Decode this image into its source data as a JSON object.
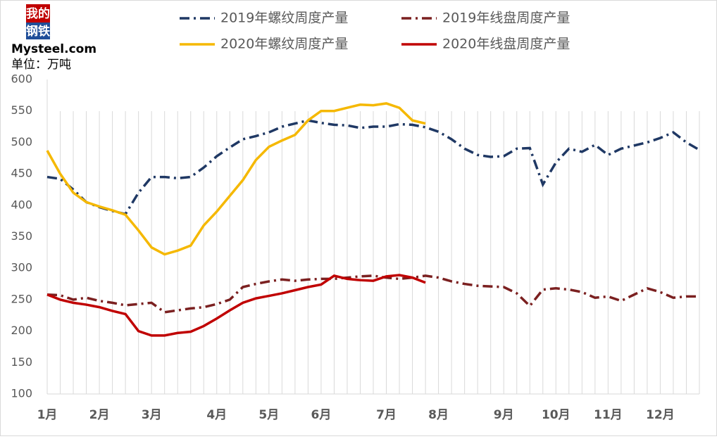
{
  "chart_data": {
    "type": "line",
    "logo": [
      "我的",
      "钢铁",
      "Mysteel.com"
    ],
    "unit": "单位：万吨",
    "categories": [
      "1月",
      null,
      null,
      null,
      "2月",
      null,
      null,
      null,
      "3月",
      null,
      null,
      null,
      null,
      "4月",
      null,
      null,
      null,
      "5月",
      null,
      null,
      null,
      "6月",
      null,
      null,
      null,
      null,
      "7月",
      null,
      null,
      null,
      "8月",
      null,
      null,
      null,
      null,
      "9月",
      null,
      null,
      null,
      "10月",
      null,
      null,
      null,
      "11月",
      null,
      null,
      null,
      "12月",
      null,
      null,
      null
    ],
    "ylim": [
      100,
      600
    ],
    "yticks": [
      100,
      150,
      200,
      250,
      300,
      350,
      400,
      450,
      500,
      550,
      600
    ],
    "grid": true,
    "series": [
      {
        "name": "2019年螺纹周度产量",
        "color": "#1f3864",
        "dash": "dashdot",
        "values": [
          445,
          442,
          425,
          405,
          397,
          391,
          386,
          420,
          445,
          445,
          443,
          445,
          460,
          478,
          492,
          505,
          510,
          516,
          525,
          530,
          535,
          531,
          528,
          527,
          523,
          525,
          525,
          529,
          528,
          524,
          517,
          505,
          490,
          480,
          477,
          478,
          490,
          491,
          433,
          468,
          490,
          485,
          496,
          480,
          490,
          495,
          500,
          507,
          516,
          500,
          488
        ]
      },
      {
        "name": "2019年线盘周度产量",
        "color": "#7b2020",
        "dash": "dashdot",
        "values": [
          258,
          257,
          250,
          253,
          248,
          245,
          241,
          243,
          245,
          230,
          233,
          236,
          238,
          243,
          250,
          270,
          275,
          279,
          282,
          280,
          282,
          283,
          283,
          285,
          287,
          288,
          285,
          283,
          285,
          288,
          285,
          279,
          275,
          272,
          271,
          270,
          260,
          240,
          266,
          268,
          266,
          262,
          253,
          255,
          248,
          258,
          268,
          262,
          253,
          255,
          255
        ]
      },
      {
        "name": "2020年螺纹周度产量",
        "color": "#f5b800",
        "dash": "solid",
        "values": [
          487,
          450,
          420,
          405,
          398,
          392,
          385,
          360,
          333,
          322,
          328,
          336,
          368,
          390,
          415,
          440,
          472,
          493,
          503,
          512,
          535,
          550,
          550,
          555,
          560,
          559,
          562,
          555,
          535,
          530,
          null,
          null,
          null,
          null,
          null,
          null,
          null,
          null,
          null,
          null,
          null,
          null,
          null,
          null,
          null,
          null,
          null,
          null,
          null,
          null,
          null
        ]
      },
      {
        "name": "2020年线盘周度产量",
        "color": "#c00000",
        "dash": "solid",
        "values": [
          258,
          250,
          245,
          242,
          238,
          232,
          227,
          200,
          193,
          193,
          197,
          199,
          208,
          220,
          233,
          245,
          252,
          256,
          260,
          265,
          270,
          274,
          288,
          283,
          281,
          280,
          287,
          289,
          285,
          277,
          null,
          null,
          null,
          null,
          null,
          null,
          null,
          null,
          null,
          null,
          null,
          null,
          null,
          null,
          null,
          null,
          null,
          null,
          null,
          null,
          null
        ]
      }
    ]
  }
}
